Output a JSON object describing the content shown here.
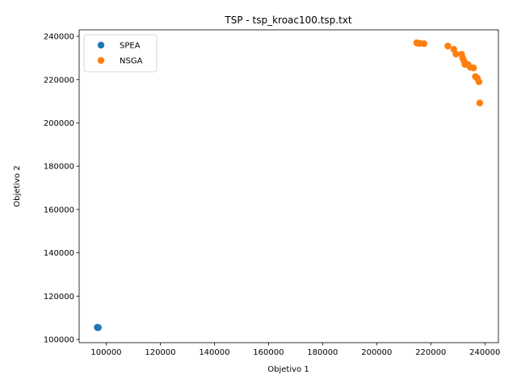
{
  "chart_data": {
    "type": "scatter",
    "title": "TSP - tsp_kroac100.tsp.txt",
    "xlabel": "Objetivo 1",
    "ylabel": "Objetivo 2",
    "xlim": [
      90000,
      245000
    ],
    "ylim": [
      98500,
      243000
    ],
    "x_ticks": [
      100000,
      120000,
      140000,
      160000,
      180000,
      200000,
      220000,
      240000
    ],
    "y_ticks": [
      100000,
      120000,
      140000,
      160000,
      180000,
      200000,
      220000,
      240000
    ],
    "legend_position": "upper-left",
    "grid": false,
    "series": [
      {
        "name": "SPEA",
        "color": "#1f77b4",
        "points": [
          {
            "x": 96700,
            "y": 105600
          },
          {
            "x": 96900,
            "y": 105400
          },
          {
            "x": 97100,
            "y": 105500
          }
        ]
      },
      {
        "name": "NSGA",
        "color": "#ff7f0e",
        "points": [
          {
            "x": 214800,
            "y": 237000
          },
          {
            "x": 215200,
            "y": 236800
          },
          {
            "x": 216000,
            "y": 236700
          },
          {
            "x": 217500,
            "y": 236600
          },
          {
            "x": 226300,
            "y": 235500
          },
          {
            "x": 228500,
            "y": 234000
          },
          {
            "x": 229300,
            "y": 231800
          },
          {
            "x": 231400,
            "y": 231700
          },
          {
            "x": 231800,
            "y": 229900
          },
          {
            "x": 232300,
            "y": 228600
          },
          {
            "x": 232600,
            "y": 227000
          },
          {
            "x": 233800,
            "y": 226900
          },
          {
            "x": 234600,
            "y": 225700
          },
          {
            "x": 235800,
            "y": 225400
          },
          {
            "x": 236500,
            "y": 221400
          },
          {
            "x": 237200,
            "y": 220600
          },
          {
            "x": 237800,
            "y": 219000
          },
          {
            "x": 238100,
            "y": 209200
          }
        ]
      }
    ]
  }
}
